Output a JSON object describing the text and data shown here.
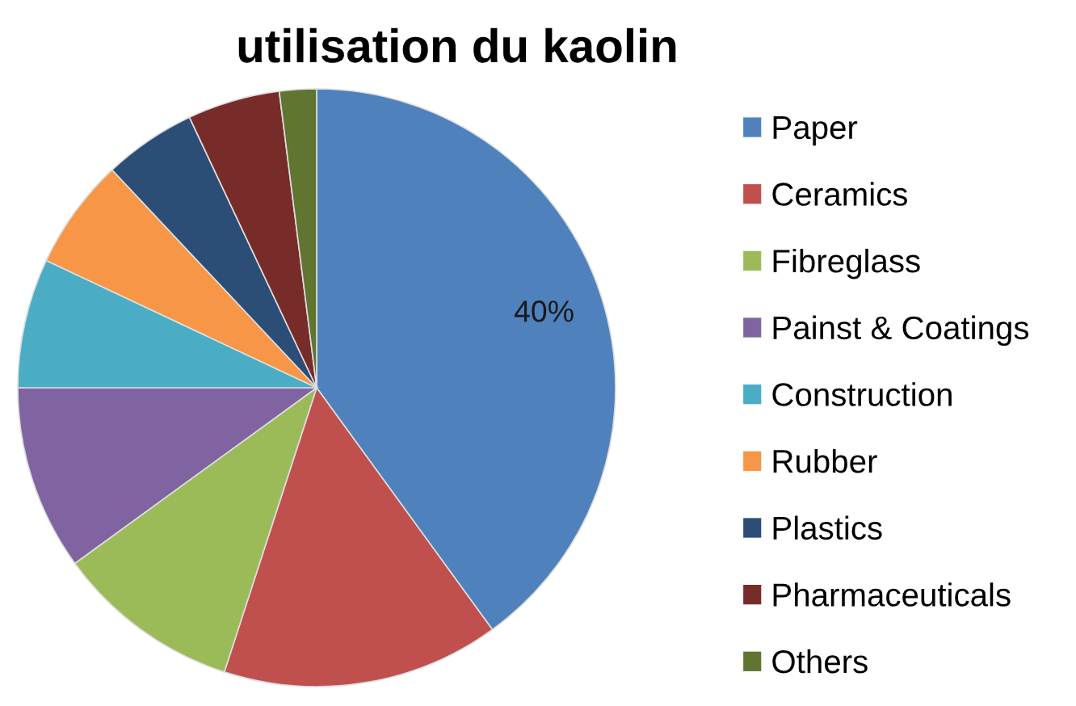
{
  "chart_data": {
    "type": "pie",
    "title": "utilisation du kaolin",
    "categories": [
      "Paper",
      "Ceramics",
      "Fibreglass",
      "Painst & Coatings",
      "Construction",
      "Rubber",
      "Plastics",
      "Pharmaceuticals",
      "Others"
    ],
    "values": [
      40,
      15,
      10,
      10,
      7,
      6,
      5,
      5,
      2
    ],
    "value_labels": [
      "40%",
      null,
      null,
      null,
      null,
      null,
      null,
      null,
      null
    ],
    "colors": [
      "#4f81bd",
      "#c0504d",
      "#9bbb59",
      "#8064a2",
      "#4bacc6",
      "#f79646",
      "#2c4d75",
      "#772c2a",
      "#5f7530"
    ],
    "legend": "right"
  }
}
